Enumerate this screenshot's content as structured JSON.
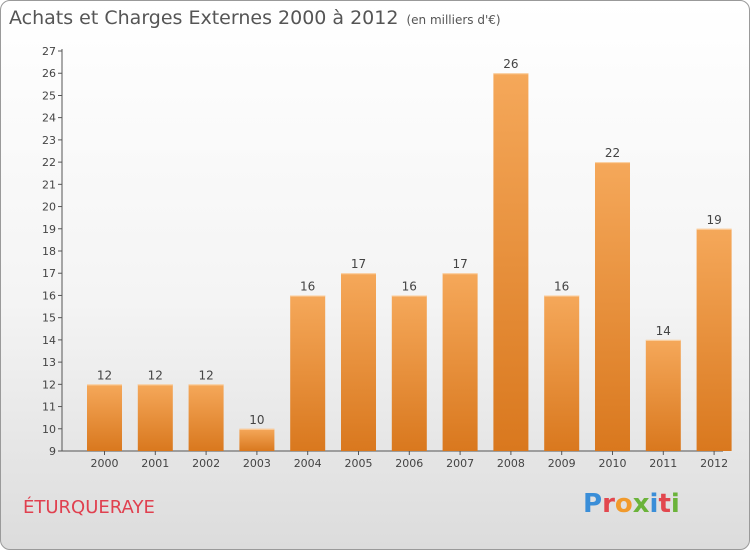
{
  "title": "Achats et Charges Externes 2000 à 2012",
  "unit_note": "(en milliers d'€)",
  "commune": "ÉTURQUERAYE",
  "logo_text": "Proxiti",
  "colors": {
    "bar_top": "#f5a85a",
    "bar_bottom": "#d9781e",
    "commune": "#e0404f",
    "logo": [
      "#3a8ed8",
      "#e2474e",
      "#f19a2c",
      "#6bb33a",
      "#3a8ed8",
      "#e2474e",
      "#6bb33a"
    ]
  },
  "chart_data": {
    "type": "bar",
    "title": "Achats et Charges Externes 2000 à 2012",
    "subtitle": "(en milliers d'€)",
    "categories": [
      "2000",
      "2001",
      "2002",
      "2003",
      "2004",
      "2005",
      "2006",
      "2007",
      "2008",
      "2009",
      "2010",
      "2011",
      "2012"
    ],
    "values": [
      12,
      12,
      12,
      10,
      16,
      17,
      16,
      17,
      26,
      16,
      22,
      14,
      19
    ],
    "ylim": [
      9,
      27
    ],
    "yticks": [
      "9",
      "10",
      "11",
      "12",
      "13",
      "14",
      "15",
      "16",
      "17",
      "18",
      "19",
      "20",
      "21",
      "22",
      "23",
      "24",
      "25",
      "26",
      "27"
    ],
    "grid": false,
    "legend": "none"
  }
}
